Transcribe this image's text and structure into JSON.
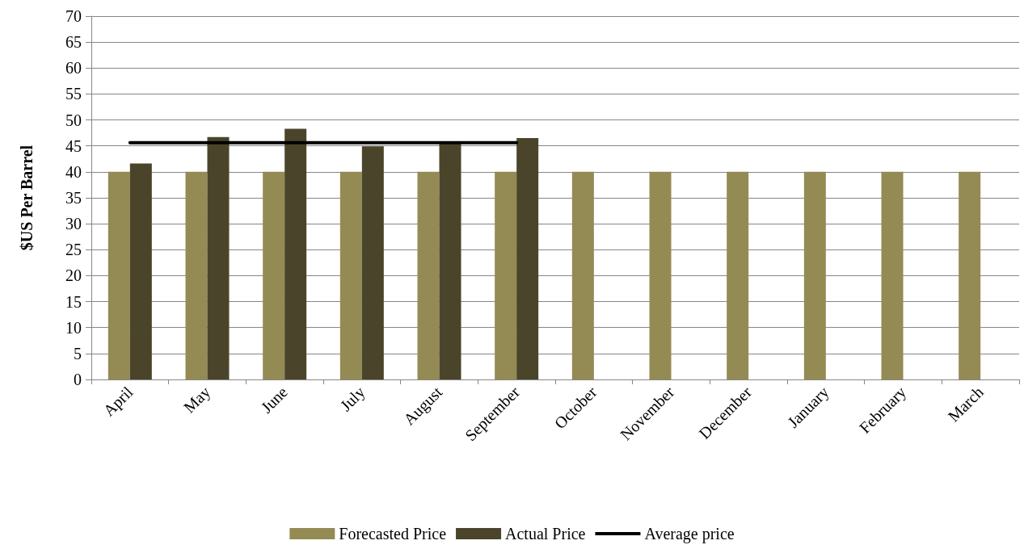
{
  "chart_data": {
    "type": "bar",
    "ylabel": "$US Per Barrel",
    "categories": [
      "April",
      "May",
      "June",
      "July",
      "August",
      "September",
      "October",
      "November",
      "December",
      "January",
      "February",
      "March"
    ],
    "series": [
      {
        "name": "Forecasted Price",
        "color": "#948a54",
        "values": [
          40,
          40,
          40,
          40,
          40,
          40,
          40,
          40,
          40,
          40,
          40,
          40
        ]
      },
      {
        "name": "Actual Price",
        "color": "#4a452a",
        "values": [
          41.6,
          46.7,
          48.3,
          44.9,
          45.7,
          46.5,
          null,
          null,
          null,
          null,
          null,
          null
        ]
      },
      {
        "name": "Average price",
        "type": "line",
        "color": "#000000",
        "values": [
          45.6,
          45.6,
          45.6,
          45.6,
          45.6,
          45.6,
          null,
          null,
          null,
          null,
          null,
          null
        ]
      }
    ],
    "ylim": [
      0,
      70
    ],
    "yticks": [
      0,
      5,
      10,
      15,
      20,
      25,
      30,
      35,
      40,
      45,
      50,
      55,
      60,
      65,
      70
    ],
    "grid": "y",
    "legend": "bottom",
    "marker": "none",
    "line_style": "solid"
  }
}
